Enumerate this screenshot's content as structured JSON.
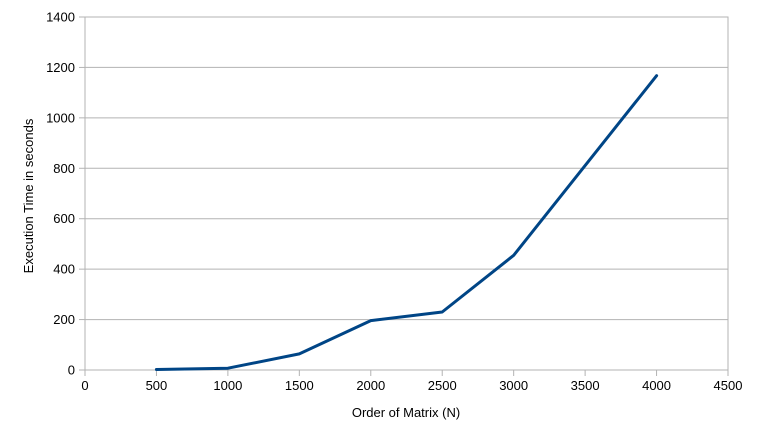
{
  "chart_data": {
    "type": "line",
    "title": "",
    "xlabel": "Order of Matrix (N)",
    "ylabel": "Execution Time in seconds",
    "xlim": [
      0,
      4500
    ],
    "ylim": [
      0,
      1400
    ],
    "xticks": [
      0,
      500,
      1000,
      1500,
      2000,
      2500,
      3000,
      3500,
      4000,
      4500
    ],
    "yticks": [
      0,
      200,
      400,
      600,
      800,
      1000,
      1200,
      1400
    ],
    "grid": "horizontal",
    "legend": "none",
    "series": [
      {
        "color": "#004586",
        "x": [
          500,
          1000,
          1500,
          2000,
          2500,
          3000,
          4000
        ],
        "y": [
          2,
          7,
          64,
          196,
          230,
          455,
          1167
        ]
      }
    ]
  }
}
